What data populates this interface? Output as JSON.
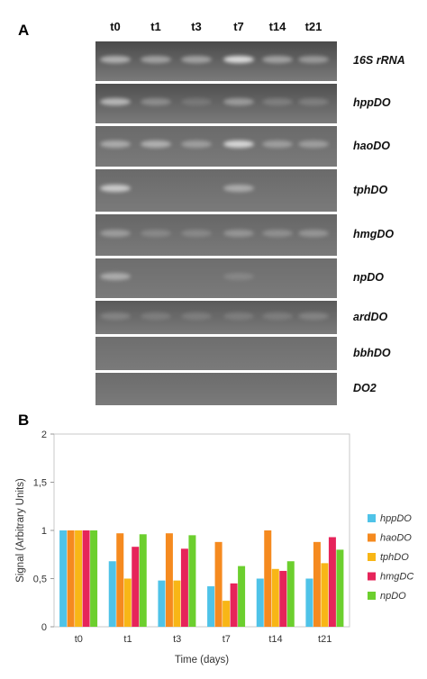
{
  "panels": {
    "a": "A",
    "b": "B"
  },
  "lanes": [
    "t0",
    "t1",
    "t3",
    "t7",
    "t14",
    "t21"
  ],
  "gels": [
    {
      "gene": "16S rRNA",
      "bands": [
        0.55,
        0.45,
        0.45,
        0.85,
        0.45,
        0.4
      ]
    },
    {
      "gene": "hppDO",
      "bands": [
        0.6,
        0.3,
        0.15,
        0.4,
        0.2,
        0.2
      ]
    },
    {
      "gene": "haoDO",
      "bands": [
        0.45,
        0.5,
        0.35,
        0.8,
        0.35,
        0.35
      ]
    },
    {
      "gene": "tphDO",
      "bands": [
        0.7,
        0.0,
        0.0,
        0.45,
        0.0,
        0.0
      ]
    },
    {
      "gene": "hmgDO",
      "bands": [
        0.35,
        0.2,
        0.2,
        0.3,
        0.25,
        0.3
      ]
    },
    {
      "gene": "npDO",
      "bands": [
        0.45,
        0.0,
        0.0,
        0.15,
        0.0,
        0.0
      ]
    },
    {
      "gene": "ardDO",
      "bands": [
        0.2,
        0.15,
        0.15,
        0.15,
        0.15,
        0.2
      ]
    },
    {
      "gene": "bbhDO",
      "bands": [
        0,
        0,
        0,
        0,
        0,
        0
      ]
    },
    {
      "gene": "DO2",
      "bands": [
        0,
        0,
        0,
        0,
        0,
        0
      ]
    }
  ],
  "colors": {
    "hppDO": "#4fc3e8",
    "haoDO": "#f58a1f",
    "tphDO": "#f8b616",
    "hmgDO": "#e6245a",
    "npDO": "#6ccf2e",
    "gel_background": "#5a5a5a"
  },
  "chart_data": {
    "type": "bar",
    "title": "",
    "xlabel": "Time (days)",
    "ylabel": "Signal (Arbitrary Units)",
    "ylim": [
      0,
      2
    ],
    "yticks": [
      "0",
      "0,5",
      "1",
      "1,5",
      "2"
    ],
    "grid": false,
    "legend_position": "right",
    "categories": [
      "t0",
      "t1",
      "t3",
      "t7",
      "t14",
      "t21"
    ],
    "series": [
      {
        "name": "hppDO",
        "values": [
          1.0,
          0.68,
          0.48,
          0.42,
          0.5,
          0.5
        ]
      },
      {
        "name": "haoDO",
        "values": [
          1.0,
          0.97,
          0.97,
          0.88,
          1.0,
          0.88
        ]
      },
      {
        "name": "tphDO",
        "values": [
          1.0,
          0.5,
          0.48,
          0.27,
          0.6,
          0.66
        ]
      },
      {
        "name": "hmgDC",
        "values": [
          1.0,
          0.83,
          0.81,
          0.45,
          0.58,
          0.93
        ]
      },
      {
        "name": "npDO",
        "values": [
          1.0,
          0.96,
          0.95,
          0.63,
          0.68,
          0.8
        ]
      }
    ]
  }
}
